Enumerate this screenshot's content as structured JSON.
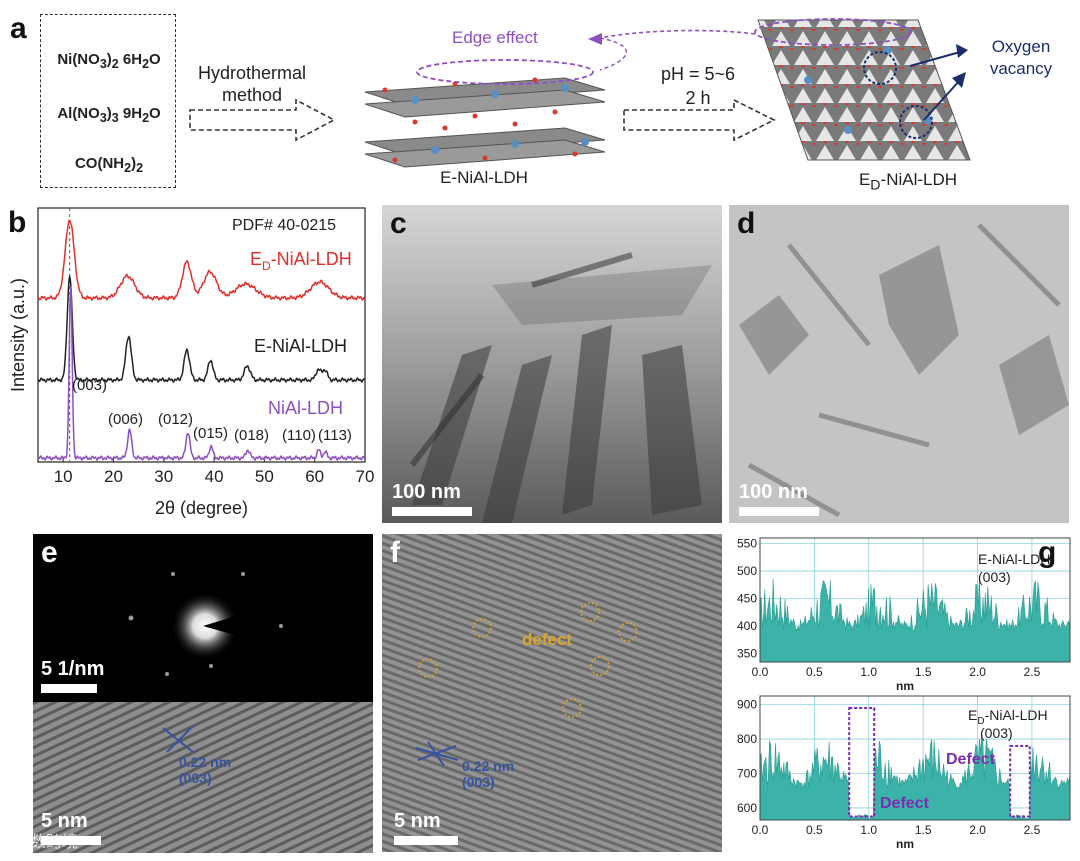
{
  "panel_a": {
    "letter": "a",
    "reagents": [
      "Ni(NO3)2 6H2O",
      "Al(NO3)3 9H2O",
      "CO(NH2)2"
    ],
    "step1": [
      "Hydrothermal",
      "method"
    ],
    "product1": "E-NiAl-LDH",
    "step2": [
      "pH = 5~6",
      "2 h"
    ],
    "product2": "ED-NiAl-LDH",
    "edge_effect": "Edge effect",
    "oxygen_vacancy": [
      "Oxygen",
      "vacancy"
    ]
  },
  "panel_b": {
    "letter": "b",
    "pdf_ref": "PDF# 40-0215",
    "peak_labels": [
      "(003)",
      "(006)",
      "(012)",
      "(015)",
      "(018)",
      "(110)",
      "(113)"
    ],
    "chart_data": {
      "type": "line",
      "xlabel": "2θ (degree)",
      "ylabel": "Intensity (a.u.)",
      "xlim": [
        5,
        70
      ],
      "xticks": [
        10,
        20,
        30,
        40,
        50,
        60,
        70
      ],
      "series": [
        {
          "name": "ED-NiAl-LDH",
          "color": "#e0312d",
          "peaks": [
            11.3,
            22.8,
            34.6,
            39.2,
            46.3,
            61.0
          ]
        },
        {
          "name": "E-NiAl-LDH",
          "color": "#222222",
          "peaks": [
            11.3,
            23.0,
            34.6,
            39.3,
            46.6,
            60.7,
            62.0
          ]
        },
        {
          "name": "NiAl-LDH",
          "color": "#8e4fc2",
          "peaks": [
            11.5,
            23.2,
            34.8,
            39.4,
            46.7,
            60.8,
            62.1
          ]
        }
      ]
    }
  },
  "panel_c": {
    "letter": "c",
    "scale": "100 nm"
  },
  "panel_d": {
    "letter": "d",
    "scale": "100 nm"
  },
  "panel_e": {
    "letter": "e",
    "scale_top": "5 1/nm",
    "scale_bottom": "5 nm",
    "spacing": "0.22 nm",
    "plane": "(003)"
  },
  "panel_f": {
    "letter": "f",
    "defect": "defect",
    "scale": "5 nm",
    "spacing": "0.22 nm",
    "plane": "(003)"
  },
  "panel_g": {
    "letter": "g",
    "chart_data": [
      {
        "type": "area",
        "name": "E-NiAl-LDH",
        "annotation": "(003)",
        "xlabel": "nm",
        "xticks": [
          "0.0",
          "0.5",
          "1.0",
          "1.5",
          "2.0",
          "2.5"
        ],
        "yticks": [
          350,
          400,
          450,
          500,
          550
        ],
        "ylim": [
          335,
          560
        ],
        "color": "#3bb3a8"
      },
      {
        "type": "area",
        "name": "ED-NiAl-LDH",
        "annotation": "(003)",
        "xlabel": "nm",
        "xticks": [
          "0.0",
          "0.5",
          "1.0",
          "1.5",
          "2.0",
          "2.5"
        ],
        "yticks": [
          600,
          700,
          800,
          900
        ],
        "ylim": [
          565,
          925
        ],
        "color": "#3bb3a8",
        "defect_labels": [
          "Defect",
          "Defect"
        ]
      }
    ]
  },
  "watermark": "大数跨境"
}
